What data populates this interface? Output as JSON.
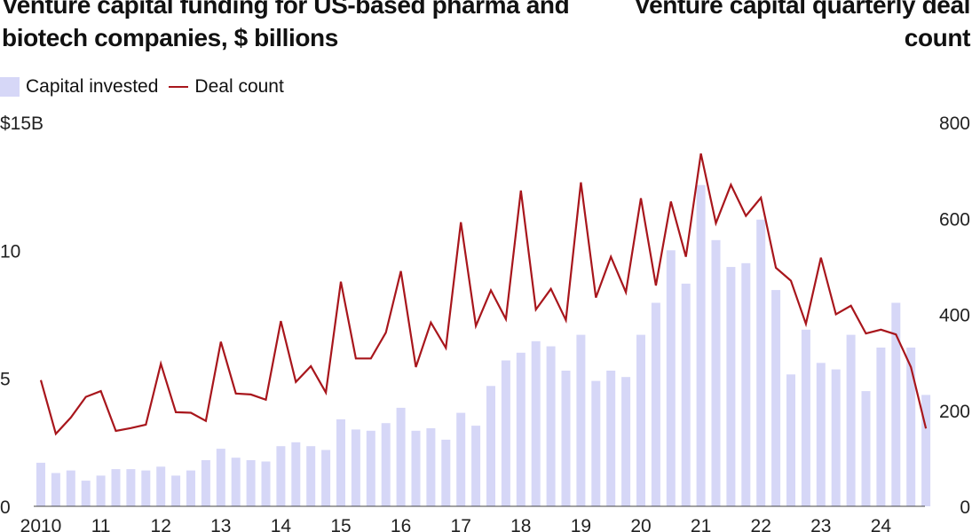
{
  "colors": {
    "bar": "#d6d7f7",
    "line": "#a8161c",
    "text": "#111111"
  },
  "legend": {
    "bar_label": "Capital invested",
    "line_label": "Deal count"
  },
  "chart_data": {
    "type": "bar",
    "title": "Venture capital funding for US-based pharma and biotech companies, $ billions",
    "right_title": "Venture capital quarterly deal count",
    "x_tick_labels": [
      "2010",
      "11",
      "12",
      "13",
      "14",
      "15",
      "16",
      "17",
      "18",
      "19",
      "20",
      "21",
      "22",
      "23",
      "24"
    ],
    "left_axis": {
      "ylim": [
        0,
        15
      ],
      "ticks": [
        0,
        5,
        10,
        15
      ],
      "tick_labels": [
        "0",
        "5",
        "10",
        "$15B"
      ]
    },
    "right_axis": {
      "ylim": [
        0,
        800
      ],
      "ticks": [
        0,
        200,
        400,
        600,
        800
      ],
      "tick_labels": [
        "0",
        "200",
        "400",
        "600",
        "800"
      ]
    },
    "series": [
      {
        "name": "Capital invested",
        "kind": "bar",
        "axis": "left",
        "values": [
          1.7,
          1.3,
          1.4,
          1.0,
          1.2,
          1.45,
          1.45,
          1.4,
          1.55,
          1.2,
          1.4,
          1.8,
          2.25,
          1.9,
          1.8,
          1.75,
          2.35,
          2.5,
          2.35,
          2.2,
          3.4,
          3.0,
          2.95,
          3.25,
          3.85,
          2.95,
          3.05,
          2.6,
          3.65,
          3.15,
          4.7,
          5.7,
          6.0,
          6.45,
          6.25,
          5.3,
          6.7,
          4.9,
          5.3,
          5.05,
          6.7,
          7.95,
          10.0,
          8.7,
          12.55,
          10.4,
          9.35,
          9.5,
          11.2,
          8.45,
          5.15,
          6.9,
          5.6,
          5.35,
          6.7,
          4.5,
          6.2,
          7.95,
          6.2,
          4.35
        ]
      },
      {
        "name": "Deal count",
        "kind": "line",
        "axis": "right",
        "values": [
          263,
          151,
          185,
          228,
          240,
          157,
          163,
          170,
          297,
          196,
          195,
          178,
          343,
          235,
          233,
          222,
          386,
          259,
          292,
          237,
          468,
          308,
          308,
          362,
          490,
          290,
          383,
          330,
          592,
          376,
          450,
          390,
          658,
          410,
          453,
          388,
          675,
          435,
          520,
          446,
          642,
          460,
          635,
          520,
          735,
          590,
          670,
          605,
          643,
          497,
          470,
          380,
          518,
          400,
          418,
          360,
          368,
          358,
          290,
          162
        ]
      }
    ]
  }
}
